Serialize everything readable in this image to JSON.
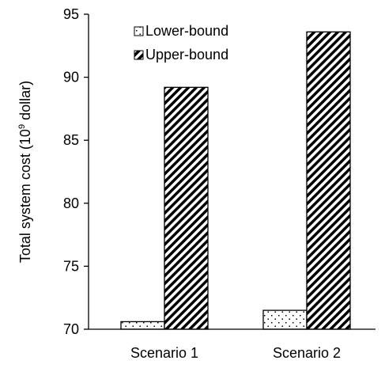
{
  "chart_data": {
    "type": "bar",
    "categories": [
      "Scenario 1",
      "Scenario 2"
    ],
    "series": [
      {
        "name": "Lower-bound",
        "values": [
          70.6,
          71.5
        ],
        "pattern": "dots"
      },
      {
        "name": "Upper-bound",
        "values": [
          89.2,
          93.6
        ],
        "pattern": "diagonal-stripes"
      }
    ],
    "ylabel_main": "Total system cost (10",
    "ylabel_sup": "9",
    "ylabel_tail": " dollar)",
    "ylim": [
      70,
      95
    ],
    "yticks": [
      70,
      75,
      80,
      85,
      90,
      95
    ],
    "legend_position": "top-center",
    "colors": {
      "bar_stroke": "#000000",
      "axis": "#000000",
      "fill": "#ffffff"
    }
  }
}
